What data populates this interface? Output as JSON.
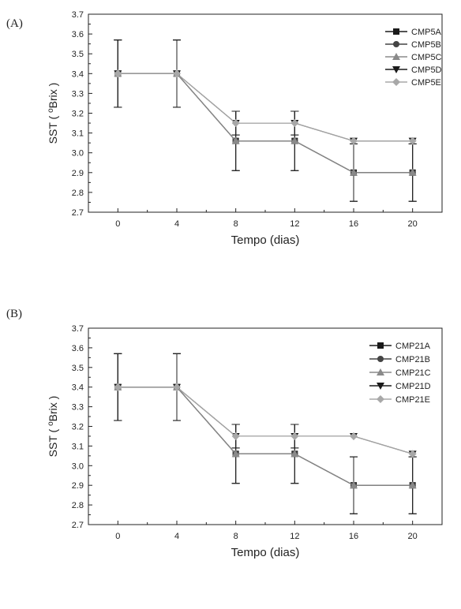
{
  "panels": [
    {
      "label": "(A)"
    },
    {
      "label": "(B)"
    }
  ],
  "chart_data": [
    {
      "type": "line",
      "x": [
        0,
        4,
        8,
        12,
        16,
        20
      ],
      "xlabel": "Tempo (dias)",
      "ylabel_main": "SST ( ",
      "ylabel_sup": "o",
      "ylabel_tail": "Brix )",
      "ylim": [
        2.7,
        3.7
      ],
      "xlim": [
        -2,
        22
      ],
      "yticks": [
        2.7,
        2.8,
        2.9,
        3.0,
        3.1,
        3.2,
        3.3,
        3.4,
        3.5,
        3.6,
        3.7
      ],
      "ytick_labels": [
        "2.7",
        "2.8",
        "2.9",
        "3.0",
        "3.1",
        "3.2",
        "3.3",
        "3.4",
        "3.5",
        "3.6",
        "3.7"
      ],
      "xticks": [
        0,
        4,
        8,
        12,
        16,
        20
      ],
      "xtick_labels": [
        "0",
        "4",
        "8",
        "12",
        "16",
        "20"
      ],
      "legend_position": "top-right",
      "grid": false,
      "series": [
        {
          "name": "CMP5A",
          "marker": "square",
          "color": "#1a1a1a",
          "values": [
            3.4,
            3.4,
            3.06,
            3.06,
            2.9,
            2.9
          ],
          "errors": [
            0.17,
            0.17,
            0.15,
            0.15,
            0.145,
            0.145
          ]
        },
        {
          "name": "CMP5B",
          "marker": "circle",
          "color": "#444444",
          "values": [
            3.4,
            3.4,
            3.06,
            3.06,
            2.9,
            2.9
          ],
          "errors": [
            0.17,
            0.17,
            0.15,
            0.15,
            0.145,
            0.145
          ]
        },
        {
          "name": "CMP5C",
          "marker": "triangle-up",
          "color": "#8a8a8a",
          "values": [
            3.4,
            3.4,
            3.06,
            3.06,
            2.9,
            2.9
          ],
          "errors": [
            0.17,
            0.17,
            0.15,
            0.15,
            0.145,
            0.145
          ]
        },
        {
          "name": "CMP5D",
          "marker": "triangle-down",
          "color": "#1a1a1a",
          "values": [
            3.4,
            3.4,
            3.15,
            3.15,
            3.06,
            3.06
          ],
          "errors": [
            0.17,
            0.17,
            0.06,
            0.06,
            0.0,
            0.0
          ]
        },
        {
          "name": "CMP5E",
          "marker": "diamond",
          "color": "#a8a8a8",
          "values": [
            3.4,
            3.4,
            3.15,
            3.15,
            3.06,
            3.06
          ],
          "errors": [
            0.17,
            0.17,
            0.06,
            0.06,
            0.0,
            0.0
          ]
        }
      ]
    },
    {
      "type": "line",
      "x": [
        0,
        4,
        8,
        12,
        16,
        20
      ],
      "xlabel": "Tempo (dias)",
      "ylabel_main": "SST ( ",
      "ylabel_sup": "o",
      "ylabel_tail": "Brix )",
      "ylim": [
        2.7,
        3.7
      ],
      "xlim": [
        -2,
        22
      ],
      "yticks": [
        2.7,
        2.8,
        2.9,
        3.0,
        3.1,
        3.2,
        3.3,
        3.4,
        3.5,
        3.6,
        3.7
      ],
      "ytick_labels": [
        "2.7",
        "2.8",
        "2.9",
        "3.0",
        "3.1",
        "3.2",
        "3.3",
        "3.4",
        "3.5",
        "3.6",
        "3.7"
      ],
      "xticks": [
        0,
        4,
        8,
        12,
        16,
        20
      ],
      "xtick_labels": [
        "0",
        "4",
        "8",
        "12",
        "16",
        "20"
      ],
      "legend_position": "top-right",
      "grid": false,
      "series": [
        {
          "name": "CMP21A",
          "marker": "square",
          "color": "#1a1a1a",
          "values": [
            3.4,
            3.4,
            3.06,
            3.06,
            2.9,
            2.9
          ],
          "errors": [
            0.17,
            0.17,
            0.15,
            0.15,
            0.145,
            0.145
          ]
        },
        {
          "name": "CMP21B",
          "marker": "circle",
          "color": "#444444",
          "values": [
            3.4,
            3.4,
            3.06,
            3.06,
            2.9,
            2.9
          ],
          "errors": [
            0.17,
            0.17,
            0.15,
            0.15,
            0.145,
            0.145
          ]
        },
        {
          "name": "CMP21C",
          "marker": "triangle-up",
          "color": "#8a8a8a",
          "values": [
            3.4,
            3.4,
            3.06,
            3.06,
            2.9,
            2.9
          ],
          "errors": [
            0.17,
            0.17,
            0.15,
            0.15,
            0.145,
            0.145
          ]
        },
        {
          "name": "CMP21D",
          "marker": "triangle-down",
          "color": "#1a1a1a",
          "values": [
            3.4,
            3.4,
            3.15,
            3.15,
            3.15,
            3.06
          ],
          "errors": [
            0.17,
            0.17,
            0.06,
            0.06,
            0.0,
            0.0
          ]
        },
        {
          "name": "CMP21E",
          "marker": "diamond",
          "color": "#a8a8a8",
          "values": [
            3.4,
            3.4,
            3.15,
            3.15,
            3.15,
            3.06
          ],
          "errors": [
            0.17,
            0.17,
            0.06,
            0.06,
            0.0,
            0.0
          ]
        }
      ]
    }
  ]
}
